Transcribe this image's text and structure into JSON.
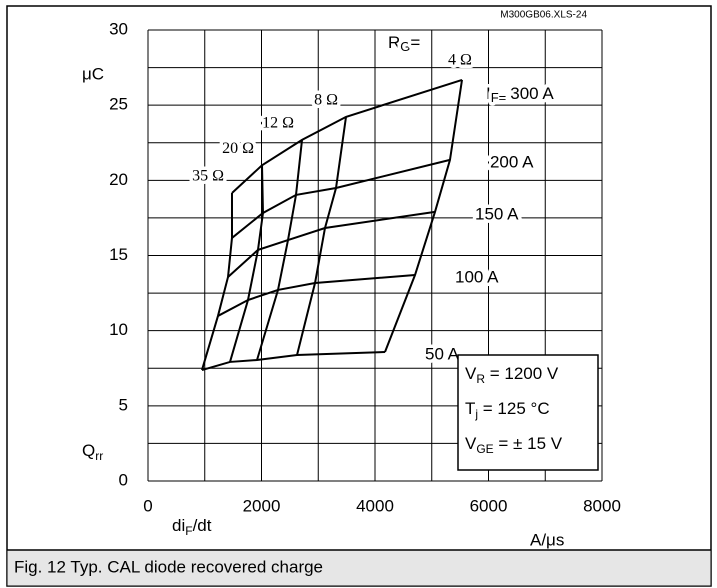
{
  "chart_data": {
    "type": "line",
    "caption": "Fig. 12 Typ. CAL diode recovered charge",
    "file_id": "M300GB06.XLS-24",
    "y_unit": "μC",
    "y_label": {
      "main": "Q",
      "sub": "rr"
    },
    "x_label": {
      "main": "di",
      "sub": "F",
      "suffix": "/dt"
    },
    "x_unit": "A/μs",
    "xlim": [
      0,
      8000
    ],
    "ylim": [
      0,
      30
    ],
    "xticks": [
      0,
      2000,
      4000,
      6000,
      8000
    ],
    "yticks": [
      0,
      5,
      10,
      15,
      20,
      25,
      30
    ],
    "x_minor_grid": [
      1000,
      3000,
      5000,
      7000
    ],
    "y_minor_grid": [
      2.5,
      7.5,
      12.5,
      17.5,
      22.5,
      27.5
    ],
    "grid": true,
    "color": "#000000",
    "rg_title": {
      "main": "R",
      "sub": "G",
      "suffix": "="
    },
    "rg_labels": [
      "35 Ω",
      "20 Ω",
      "12 Ω",
      "8 Ω",
      "4 Ω"
    ],
    "if_title": {
      "main": "I",
      "sub": "F="
    },
    "series": [
      {
        "name": "50 A",
        "x": [
          951,
          1445,
          1921,
          2626,
          4176
        ],
        "values": [
          7.38,
          7.92,
          8.05,
          8.38,
          8.58
        ]
      },
      {
        "name": "100 A",
        "x": [
          1233,
          1762,
          2291,
          2943,
          4705
        ],
        "values": [
          10.98,
          12.04,
          12.71,
          13.17,
          13.7
        ]
      },
      {
        "name": "150 A",
        "x": [
          1410,
          1938,
          2467,
          3119,
          5057
        ],
        "values": [
          13.57,
          15.37,
          16.03,
          16.83,
          17.9
        ]
      },
      {
        "name": "200 A",
        "x": [
          1480,
          2026,
          2608,
          3313,
          5321
        ],
        "values": [
          16.17,
          17.83,
          19.03,
          19.49,
          21.36
        ]
      },
      {
        "name": "300 A",
        "x": [
          1480,
          2009,
          2714,
          3489,
          5533
        ],
        "values": [
          19.16,
          21.0,
          22.69,
          24.22,
          26.68
        ]
      }
    ],
    "conditions": [
      {
        "main": "V",
        "sub": "R",
        "rest": " = 1200 V"
      },
      {
        "main": "T",
        "sub": "j",
        "rest": " = 125 °C"
      },
      {
        "main": "V",
        "sub": "GE",
        "rest": " = ± 15 V"
      }
    ]
  }
}
